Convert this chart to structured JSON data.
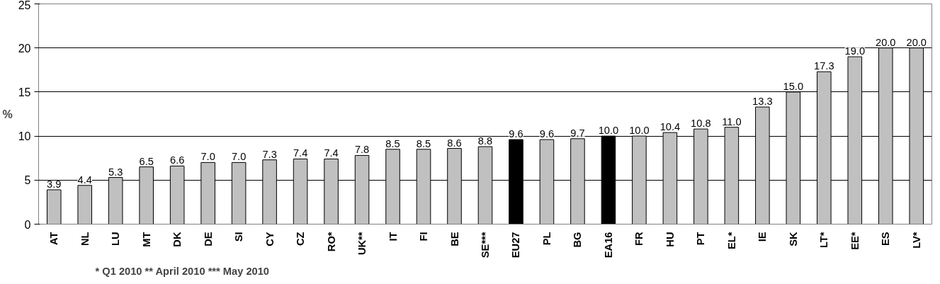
{
  "chart_data": {
    "type": "bar",
    "ylabel": "%",
    "categories": [
      "AT",
      "NL",
      "LU",
      "MT",
      "DK",
      "DE",
      "SI",
      "CY",
      "CZ",
      "RO*",
      "UK**",
      "IT",
      "FI",
      "BE",
      "SE***",
      "EU27",
      "PL",
      "BG",
      "EA16",
      "FR",
      "HU",
      "PT",
      "EL*",
      "IE",
      "SK",
      "LT*",
      "EE*",
      "ES",
      "LV*"
    ],
    "values": [
      3.9,
      4.4,
      5.3,
      6.5,
      6.6,
      7.0,
      7.0,
      7.3,
      7.4,
      7.4,
      7.8,
      8.5,
      8.5,
      8.6,
      8.8,
      9.6,
      9.6,
      9.7,
      10.0,
      10.0,
      10.4,
      10.8,
      11.0,
      13.3,
      15.0,
      17.3,
      19.0,
      20.0,
      20.0
    ],
    "value_labels": [
      "3.9",
      "4.4",
      "5.3",
      "6.5",
      "6.6",
      "7.0",
      "7.0",
      "7.3",
      "7.4",
      "7.4",
      "7.8",
      "8.5",
      "8.5",
      "8.6",
      "8.8",
      "9.6",
      "9.6",
      "9.7",
      "10.0",
      "10.0",
      "10.4",
      "10.8",
      "11.0",
      "13.3",
      "15.0",
      "17.3",
      "19.0",
      "20.0",
      "20.0"
    ],
    "colors": [
      "#c0c0c0",
      "#c0c0c0",
      "#c0c0c0",
      "#c0c0c0",
      "#c0c0c0",
      "#c0c0c0",
      "#c0c0c0",
      "#c0c0c0",
      "#c0c0c0",
      "#c0c0c0",
      "#c0c0c0",
      "#c0c0c0",
      "#c0c0c0",
      "#c0c0c0",
      "#c0c0c0",
      "#000000",
      "#c0c0c0",
      "#c0c0c0",
      "#000000",
      "#c0c0c0",
      "#c0c0c0",
      "#c0c0c0",
      "#c0c0c0",
      "#c0c0c0",
      "#c0c0c0",
      "#c0c0c0",
      "#c0c0c0",
      "#c0c0c0",
      "#c0c0c0"
    ],
    "ylim": [
      0,
      25
    ],
    "yticks": [
      0,
      5,
      10,
      15,
      20,
      25
    ],
    "grid": "y",
    "annotations": [
      "* Q1 2010   ** April 2010   *** May 2010"
    ]
  }
}
